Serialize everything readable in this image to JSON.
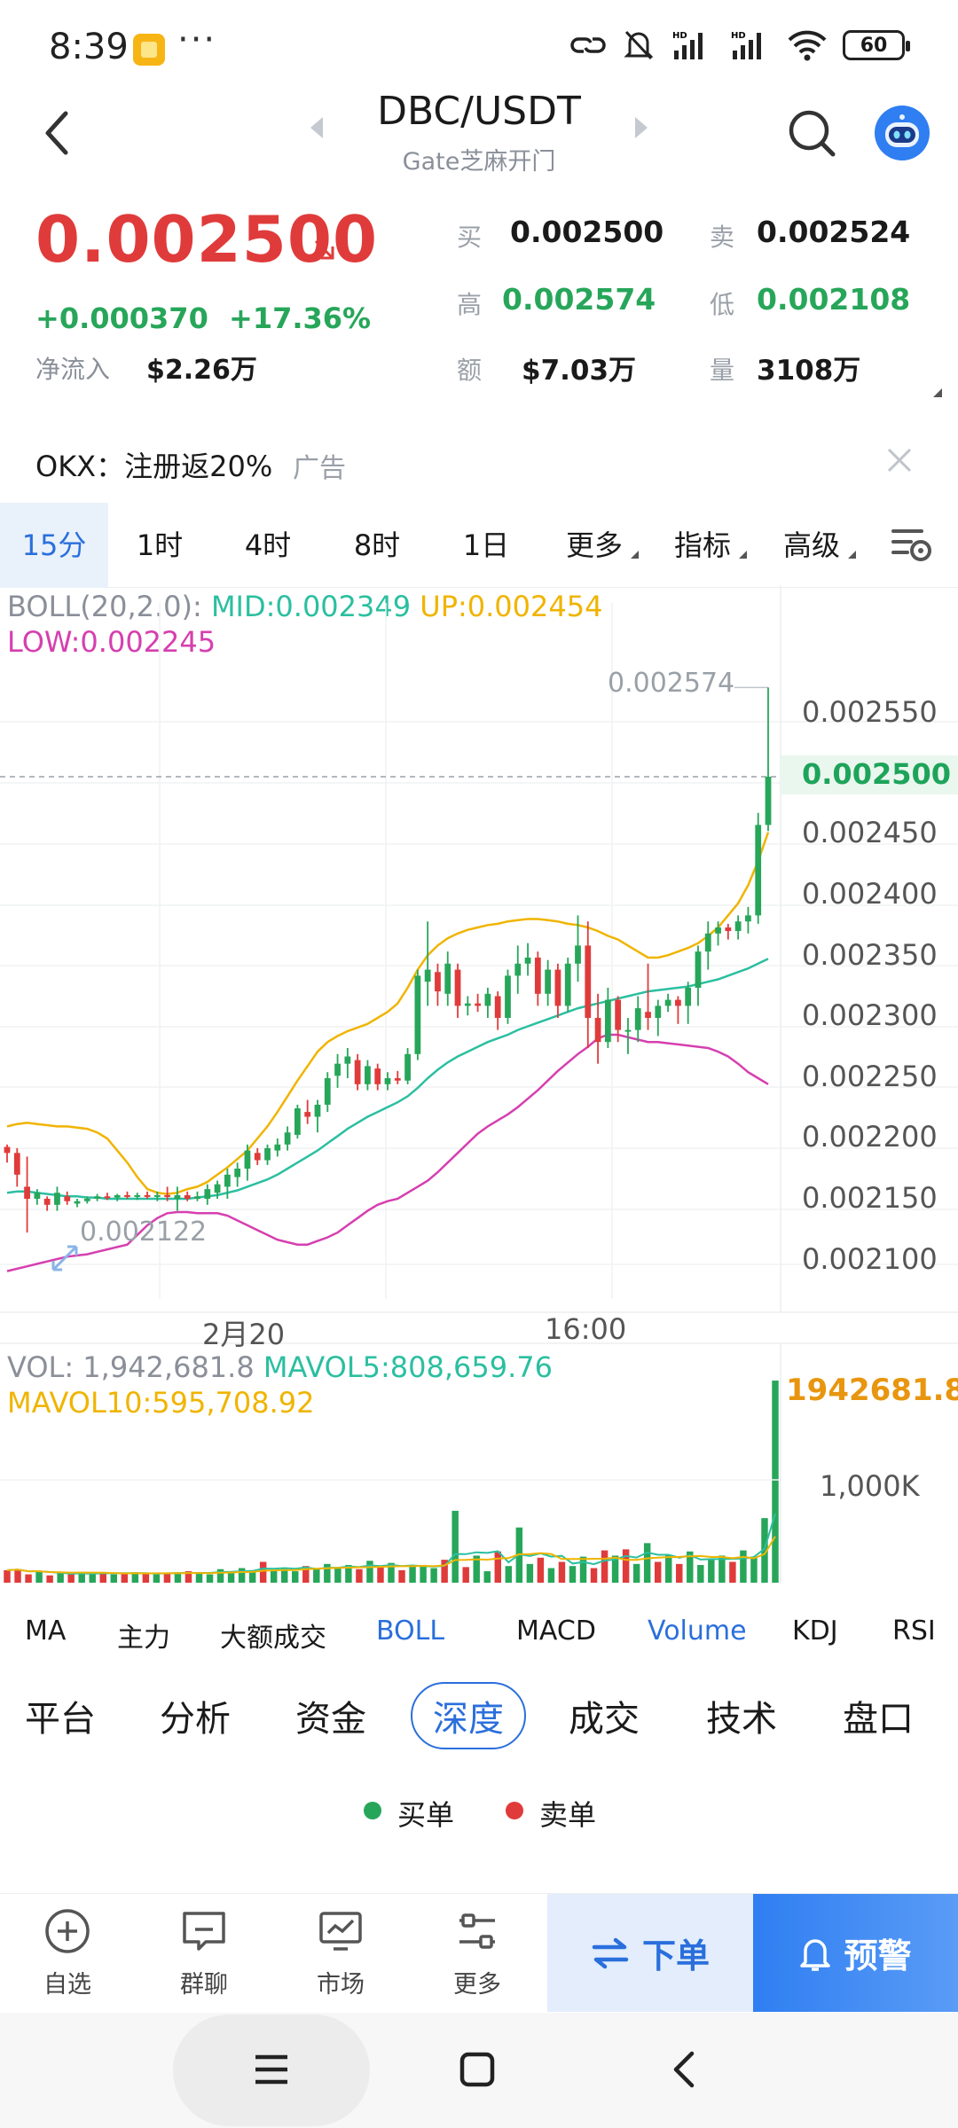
{
  "status_bar": {
    "time": "8:39",
    "more": "···",
    "battery": "60"
  },
  "nav": {
    "title": "DBC/USDT",
    "exchange": "Gate芝麻开门"
  },
  "price": {
    "last": "0.002500",
    "change": "+0.000370",
    "change_pct": "+17.36%",
    "net_inflow_label": "净流入",
    "net_inflow": "$2.26万",
    "stats": [
      {
        "label": "买",
        "value": "0.002500",
        "color": "#1a1a1a"
      },
      {
        "label": "卖",
        "value": "0.002524",
        "color": "#1a1a1a"
      },
      {
        "label": "高",
        "value": "0.002574",
        "color": "#27a65a"
      },
      {
        "label": "低",
        "value": "0.002108",
        "color": "#27a65a"
      },
      {
        "label": "额",
        "value": "$7.03万",
        "color": "#1a1a1a"
      },
      {
        "label": "量",
        "value": "3108万",
        "color": "#1a1a1a"
      }
    ]
  },
  "ad": {
    "text": "OKX：注册返20%",
    "tag": "广告"
  },
  "timeframes": [
    "15分",
    "1时",
    "4时",
    "8时",
    "1日",
    "更多",
    "指标",
    "高级"
  ],
  "active_timeframe": "15分",
  "boll": {
    "label": "BOLL(20,2.0):",
    "mid": "MID:0.002349",
    "up": "UP:0.002454",
    "low": "LOW:0.002245"
  },
  "price_axis": [
    "0.002550",
    "0.002500",
    "0.002450",
    "0.002400",
    "0.002350",
    "0.002300",
    "0.002250",
    "0.002200",
    "0.002150",
    "0.002100"
  ],
  "current_price_label": "0.002500",
  "max_label": "0.002574",
  "min_label": "0.002122",
  "time_axis": [
    "2月20",
    "16:00"
  ],
  "volume": {
    "vol": "VOL: 1,942,681.8",
    "mavol5": "MAVOL5:808,659.76",
    "mavol10": "MAVOL10:595,708.92",
    "max": "1942681.80",
    "mid": "1,000K"
  },
  "indicator_tabs": [
    "MA",
    "主力",
    "大额成交",
    "BOLL",
    "MACD",
    "Volume",
    "KDJ",
    "RSI"
  ],
  "active_indicators": [
    "BOLL",
    "Volume"
  ],
  "section_tabs": [
    "平台",
    "分析",
    "资金",
    "深度",
    "成交",
    "技术",
    "盘口"
  ],
  "active_section": "深度",
  "depth_legend": {
    "buy": "买单",
    "sell": "卖单"
  },
  "bottom_bar": {
    "items": [
      {
        "label": "自选",
        "icon": "plus-circle-icon"
      },
      {
        "label": "群聊",
        "icon": "chat-icon"
      },
      {
        "label": "市场",
        "icon": "market-icon"
      },
      {
        "label": "更多",
        "icon": "sliders-icon"
      }
    ],
    "order": "下单",
    "alert": "预警"
  },
  "colors": {
    "up": "#27a65a",
    "down": "#e03b3b",
    "accent": "#2a6fdc",
    "mid": "#2bbfa0",
    "upper": "#f0b400",
    "lower": "#d63faf"
  },
  "chart_data": {
    "type": "candlestick",
    "interval": "15分",
    "candles": [
      {
        "o": 0.002193,
        "h": 0.002195,
        "l": 0.00218,
        "c": 0.002188
      },
      {
        "o": 0.002188,
        "h": 0.002192,
        "l": 0.00216,
        "c": 0.00217
      },
      {
        "o": 0.00216,
        "h": 0.002185,
        "l": 0.002122,
        "c": 0.00215
      },
      {
        "o": 0.00215,
        "h": 0.002158,
        "l": 0.002145,
        "c": 0.002155
      },
      {
        "o": 0.00215,
        "h": 0.002152,
        "l": 0.00214,
        "c": 0.002145
      },
      {
        "o": 0.002145,
        "h": 0.00216,
        "l": 0.00214,
        "c": 0.002155
      },
      {
        "o": 0.002152,
        "h": 0.002156,
        "l": 0.002145,
        "c": 0.002148
      },
      {
        "o": 0.002146,
        "h": 0.00215,
        "l": 0.002143,
        "c": 0.002148
      },
      {
        "o": 0.002148,
        "h": 0.002152,
        "l": 0.002146,
        "c": 0.00215
      },
      {
        "o": 0.00215,
        "h": 0.002154,
        "l": 0.002148,
        "c": 0.002152
      },
      {
        "o": 0.002152,
        "h": 0.002155,
        "l": 0.002149,
        "c": 0.002151
      },
      {
        "o": 0.002151,
        "h": 0.002154,
        "l": 0.002148,
        "c": 0.002153
      },
      {
        "o": 0.002153,
        "h": 0.002156,
        "l": 0.00215,
        "c": 0.002152
      },
      {
        "o": 0.002152,
        "h": 0.002155,
        "l": 0.002149,
        "c": 0.002153
      },
      {
        "o": 0.002153,
        "h": 0.002156,
        "l": 0.00215,
        "c": 0.002152
      },
      {
        "o": 0.002152,
        "h": 0.002156,
        "l": 0.002148,
        "c": 0.002153
      },
      {
        "o": 0.002153,
        "h": 0.00216,
        "l": 0.002148,
        "c": 0.002152
      },
      {
        "o": 0.00215,
        "h": 0.00216,
        "l": 0.00214,
        "c": 0.002153
      },
      {
        "o": 0.002153,
        "h": 0.002156,
        "l": 0.002148,
        "c": 0.00215
      },
      {
        "o": 0.00215,
        "h": 0.002156,
        "l": 0.002148,
        "c": 0.002152
      },
      {
        "o": 0.00215,
        "h": 0.002162,
        "l": 0.002145,
        "c": 0.002158
      },
      {
        "o": 0.002155,
        "h": 0.002165,
        "l": 0.00215,
        "c": 0.002162
      },
      {
        "o": 0.00216,
        "h": 0.002175,
        "l": 0.00215,
        "c": 0.00217
      },
      {
        "o": 0.002168,
        "h": 0.00218,
        "l": 0.00216,
        "c": 0.002175
      },
      {
        "o": 0.002175,
        "h": 0.002195,
        "l": 0.002165,
        "c": 0.00219
      },
      {
        "o": 0.002188,
        "h": 0.002192,
        "l": 0.002178,
        "c": 0.002182
      },
      {
        "o": 0.002182,
        "h": 0.002195,
        "l": 0.002178,
        "c": 0.002192
      },
      {
        "o": 0.00219,
        "h": 0.0022,
        "l": 0.002185,
        "c": 0.002195
      },
      {
        "o": 0.002195,
        "h": 0.00221,
        "l": 0.00219,
        "c": 0.002205
      },
      {
        "o": 0.002203,
        "h": 0.002228,
        "l": 0.0022,
        "c": 0.002225
      },
      {
        "o": 0.002222,
        "h": 0.002232,
        "l": 0.002212,
        "c": 0.002218
      },
      {
        "o": 0.002218,
        "h": 0.002232,
        "l": 0.002205,
        "c": 0.002228
      },
      {
        "o": 0.002228,
        "h": 0.002255,
        "l": 0.002222,
        "c": 0.00225
      },
      {
        "o": 0.002252,
        "h": 0.00227,
        "l": 0.002242,
        "c": 0.002262
      },
      {
        "o": 0.002262,
        "h": 0.002275,
        "l": 0.00225,
        "c": 0.002268
      },
      {
        "o": 0.002265,
        "h": 0.00227,
        "l": 0.00224,
        "c": 0.002245
      },
      {
        "o": 0.002245,
        "h": 0.002265,
        "l": 0.00224,
        "c": 0.00226
      },
      {
        "o": 0.002258,
        "h": 0.002262,
        "l": 0.00224,
        "c": 0.002245
      },
      {
        "o": 0.002245,
        "h": 0.002255,
        "l": 0.00224,
        "c": 0.00225
      },
      {
        "o": 0.00225,
        "h": 0.002256,
        "l": 0.002245,
        "c": 0.002248
      },
      {
        "o": 0.002248,
        "h": 0.002275,
        "l": 0.002245,
        "c": 0.00227
      },
      {
        "o": 0.00227,
        "h": 0.00234,
        "l": 0.002265,
        "c": 0.002335
      },
      {
        "o": 0.00233,
        "h": 0.00238,
        "l": 0.00231,
        "c": 0.00234
      },
      {
        "o": 0.002338,
        "h": 0.002345,
        "l": 0.00231,
        "c": 0.002322
      },
      {
        "o": 0.00232,
        "h": 0.002355,
        "l": 0.00231,
        "c": 0.002345
      },
      {
        "o": 0.00234,
        "h": 0.002345,
        "l": 0.0023,
        "c": 0.00231
      },
      {
        "o": 0.00231,
        "h": 0.002318,
        "l": 0.002302,
        "c": 0.002312
      },
      {
        "o": 0.002312,
        "h": 0.00232,
        "l": 0.002305,
        "c": 0.00231
      },
      {
        "o": 0.00231,
        "h": 0.002325,
        "l": 0.0023,
        "c": 0.00232
      },
      {
        "o": 0.002318,
        "h": 0.002322,
        "l": 0.00229,
        "c": 0.0023
      },
      {
        "o": 0.0023,
        "h": 0.00234,
        "l": 0.002295,
        "c": 0.002335
      },
      {
        "o": 0.002335,
        "h": 0.00236,
        "l": 0.00232,
        "c": 0.002345
      },
      {
        "o": 0.002345,
        "h": 0.002362,
        "l": 0.002335,
        "c": 0.00235
      },
      {
        "o": 0.00235,
        "h": 0.002355,
        "l": 0.00231,
        "c": 0.00232
      },
      {
        "o": 0.00232,
        "h": 0.002348,
        "l": 0.00231,
        "c": 0.00234
      },
      {
        "o": 0.00234,
        "h": 0.002345,
        "l": 0.0023,
        "c": 0.00231
      },
      {
        "o": 0.00231,
        "h": 0.00235,
        "l": 0.002305,
        "c": 0.002345
      },
      {
        "o": 0.002345,
        "h": 0.002385,
        "l": 0.00233,
        "c": 0.00236
      },
      {
        "o": 0.00236,
        "h": 0.00238,
        "l": 0.002275,
        "c": 0.0023
      },
      {
        "o": 0.0023,
        "h": 0.00232,
        "l": 0.002262,
        "c": 0.00228
      },
      {
        "o": 0.00228,
        "h": 0.002325,
        "l": 0.002275,
        "c": 0.002315
      },
      {
        "o": 0.002315,
        "h": 0.002318,
        "l": 0.00228,
        "c": 0.00229
      },
      {
        "o": 0.00229,
        "h": 0.0023,
        "l": 0.00227,
        "c": 0.00229
      },
      {
        "o": 0.00229,
        "h": 0.002318,
        "l": 0.00228,
        "c": 0.002308
      },
      {
        "o": 0.002305,
        "h": 0.002345,
        "l": 0.00229,
        "c": 0.0023
      },
      {
        "o": 0.0023,
        "h": 0.002315,
        "l": 0.002285,
        "c": 0.00231
      },
      {
        "o": 0.00231,
        "h": 0.00232,
        "l": 0.002305,
        "c": 0.002315
      },
      {
        "o": 0.002315,
        "h": 0.002318,
        "l": 0.002295,
        "c": 0.00231
      },
      {
        "o": 0.00231,
        "h": 0.00233,
        "l": 0.002295,
        "c": 0.002325
      },
      {
        "o": 0.002325,
        "h": 0.00236,
        "l": 0.00231,
        "c": 0.002355
      },
      {
        "o": 0.002355,
        "h": 0.00238,
        "l": 0.00234,
        "c": 0.00237
      },
      {
        "o": 0.00237,
        "h": 0.00238,
        "l": 0.00236,
        "c": 0.002375
      },
      {
        "o": 0.002375,
        "h": 0.002378,
        "l": 0.002365,
        "c": 0.002372
      },
      {
        "o": 0.002372,
        "h": 0.002385,
        "l": 0.002365,
        "c": 0.00238
      },
      {
        "o": 0.00238,
        "h": 0.002392,
        "l": 0.00237,
        "c": 0.002385
      },
      {
        "o": 0.002385,
        "h": 0.00247,
        "l": 0.002378,
        "c": 0.00246
      },
      {
        "o": 0.00246,
        "h": 0.002574,
        "l": 0.002455,
        "c": 0.0025
      }
    ],
    "boll_up": [
      0.00221,
      0.002212,
      0.002213,
      0.002212,
      0.002211,
      0.00221,
      0.00221,
      0.002209,
      0.002208,
      0.002205,
      0.0022,
      0.00219,
      0.00218,
      0.002168,
      0.002158,
      0.002155,
      0.002154,
      0.002155,
      0.002158,
      0.00216,
      0.002164,
      0.00217,
      0.002176,
      0.002183,
      0.00219,
      0.0022,
      0.00221,
      0.002222,
      0.002235,
      0.002248,
      0.00226,
      0.002272,
      0.00228,
      0.002285,
      0.002289,
      0.002292,
      0.002295,
      0.0023,
      0.002305,
      0.002312,
      0.002325,
      0.00234,
      0.002352,
      0.00236,
      0.002366,
      0.00237,
      0.002373,
      0.002375,
      0.002377,
      0.002378,
      0.00238,
      0.002381,
      0.002382,
      0.002382,
      0.002381,
      0.00238,
      0.002378,
      0.002377,
      0.002375,
      0.002372,
      0.002368,
      0.002365,
      0.00236,
      0.002355,
      0.00235,
      0.00235,
      0.002352,
      0.002355,
      0.002358,
      0.002362,
      0.002368,
      0.002375,
      0.002385,
      0.002395,
      0.00241,
      0.00243,
      0.002454
    ],
    "boll_mid": [
      0.002155,
      0.002156,
      0.002156,
      0.002155,
      0.002154,
      0.002153,
      0.002152,
      0.002152,
      0.002151,
      0.002151,
      0.00215,
      0.00215,
      0.00215,
      0.00215,
      0.00215,
      0.00215,
      0.00215,
      0.00215,
      0.00215,
      0.002151,
      0.002152,
      0.002153,
      0.002155,
      0.002157,
      0.00216,
      0.002163,
      0.002166,
      0.00217,
      0.002175,
      0.00218,
      0.002185,
      0.00219,
      0.002196,
      0.002202,
      0.002208,
      0.002213,
      0.002218,
      0.002222,
      0.002226,
      0.00223,
      0.002235,
      0.002242,
      0.00225,
      0.002257,
      0.002263,
      0.002268,
      0.002272,
      0.002276,
      0.00228,
      0.002283,
      0.002286,
      0.00229,
      0.002293,
      0.002296,
      0.002299,
      0.002302,
      0.002305,
      0.002308,
      0.00231,
      0.002312,
      0.002314,
      0.002316,
      0.002318,
      0.00232,
      0.002322,
      0.002323,
      0.002324,
      0.002325,
      0.002326,
      0.002328,
      0.00233,
      0.002332,
      0.002335,
      0.002338,
      0.002341,
      0.002345,
      0.002349
    ],
    "boll_low": [
      0.00209,
      0.002092,
      0.002094,
      0.002096,
      0.002098,
      0.0021,
      0.002102,
      0.002103,
      0.002104,
      0.002106,
      0.002108,
      0.00211,
      0.002112,
      0.00212,
      0.002128,
      0.002134,
      0.002138,
      0.002139,
      0.002139,
      0.002138,
      0.002138,
      0.002138,
      0.002136,
      0.002132,
      0.002128,
      0.002124,
      0.00212,
      0.002116,
      0.002114,
      0.002112,
      0.002112,
      0.002115,
      0.002118,
      0.002122,
      0.002128,
      0.002134,
      0.00214,
      0.002145,
      0.002148,
      0.00215,
      0.002155,
      0.00216,
      0.002165,
      0.002172,
      0.00218,
      0.002188,
      0.002196,
      0.002204,
      0.00221,
      0.002215,
      0.00222,
      0.002226,
      0.002233,
      0.00224,
      0.002248,
      0.002256,
      0.002263,
      0.00227,
      0.002276,
      0.002283,
      0.002286,
      0.002286,
      0.002284,
      0.002282,
      0.00228,
      0.00228,
      0.002279,
      0.002278,
      0.002277,
      0.002276,
      0.002275,
      0.002272,
      0.002268,
      0.002262,
      0.002255,
      0.00225,
      0.002245
    ],
    "volumes": [
      120,
      130,
      80,
      110,
      70,
      90,
      80,
      100,
      90,
      100,
      80,
      90,
      100,
      90,
      80,
      90,
      100,
      110,
      90,
      80,
      130,
      110,
      140,
      100,
      200,
      120,
      140,
      110,
      160,
      130,
      180,
      140,
      170,
      130,
      210,
      150,
      190,
      120,
      160,
      170,
      140,
      220,
      690,
      150,
      260,
      110,
      300,
      160,
      530,
      180,
      240,
      140,
      200,
      160,
      250,
      140,
      310,
      260,
      320,
      180,
      380,
      200,
      260,
      180,
      300,
      170,
      220,
      260,
      200,
      310,
      240,
      620,
      1940
    ],
    "vol_ymax": 2000000,
    "price_ylim": [
      0.00208,
      0.00258
    ]
  }
}
